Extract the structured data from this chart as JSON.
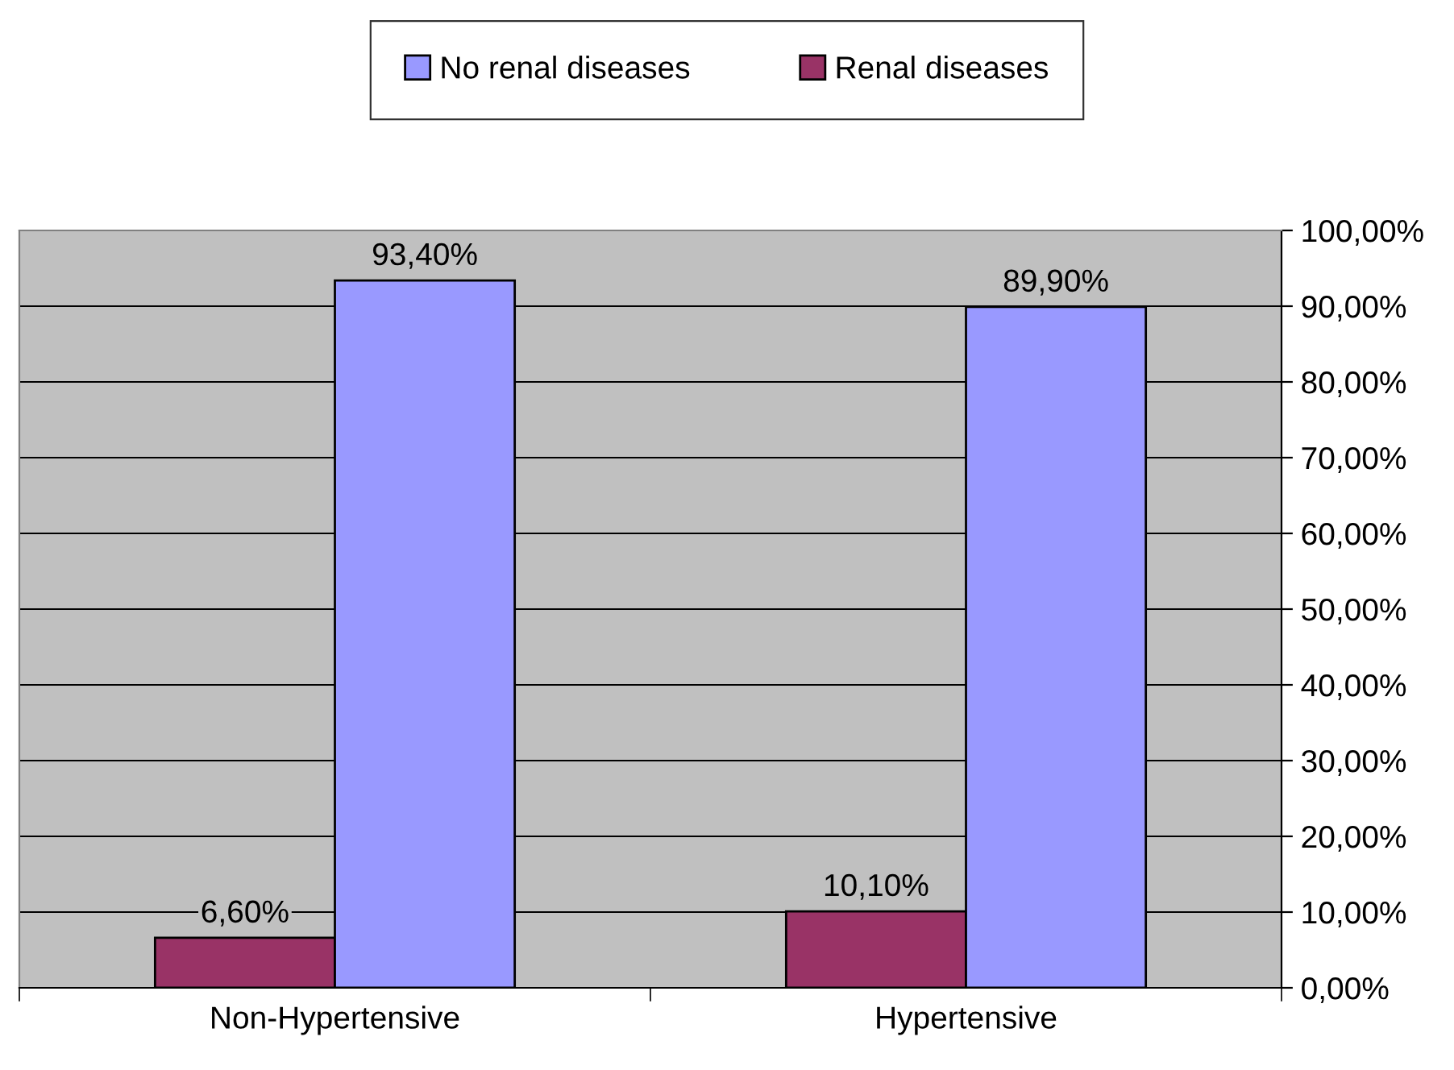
{
  "chart_data": {
    "type": "bar",
    "categories": [
      "Non-Hypertensive",
      "Hypertensive"
    ],
    "series": [
      {
        "name": "Renal diseases",
        "color": "#993366",
        "values": [
          6.6,
          10.1
        ],
        "value_labels": [
          "6,60%",
          "10,10%"
        ]
      },
      {
        "name": "No renal diseases",
        "color": "#9999ff",
        "values": [
          93.4,
          89.9
        ],
        "value_labels": [
          "93,40%",
          "89,90%"
        ]
      }
    ],
    "ylim": [
      0,
      100
    ],
    "yticks": [
      {
        "value": 0,
        "label": "0,00%"
      },
      {
        "value": 10,
        "label": "10,00%"
      },
      {
        "value": 20,
        "label": "20,00%"
      },
      {
        "value": 30,
        "label": "30,00%"
      },
      {
        "value": 40,
        "label": "40,00%"
      },
      {
        "value": 50,
        "label": "50,00%"
      },
      {
        "value": 60,
        "label": "60,00%"
      },
      {
        "value": 70,
        "label": "70,00%"
      },
      {
        "value": 80,
        "label": "80,00%"
      },
      {
        "value": 90,
        "label": "90,00%"
      },
      {
        "value": 100,
        "label": "100,00%"
      }
    ],
    "grid": "y",
    "legend": "top"
  }
}
